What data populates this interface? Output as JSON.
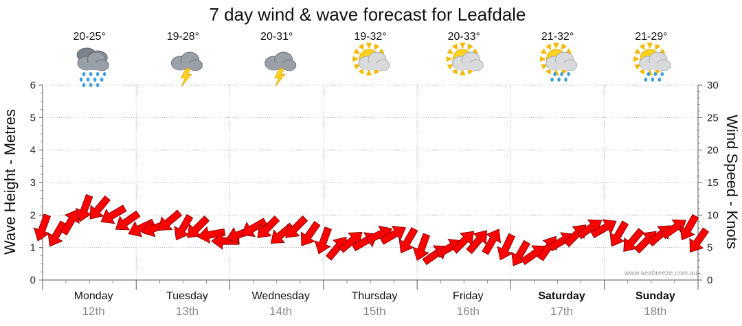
{
  "chart_data": {
    "type": "line",
    "title": "7 day wind & wave forecast for Leafdale",
    "ylabel_left": "Wave Height - Metres",
    "ylabel_right": "Wind Speed - Knots",
    "ylim_left": [
      0,
      6
    ],
    "ylim_right": [
      0,
      30
    ],
    "yticks_left": [
      "0",
      "1",
      "2",
      "3",
      "4",
      "5",
      "6"
    ],
    "yticks_right": [
      "0",
      "5",
      "10",
      "15",
      "20",
      "25",
      "30"
    ],
    "grid": true,
    "credit": "www.seabreeze.com.au",
    "days": [
      {
        "name": "Monday",
        "date": "12th",
        "temp": "20-25°",
        "icon": "rain-cloud-icon",
        "bold": false
      },
      {
        "name": "Tuesday",
        "date": "13th",
        "temp": "19-28°",
        "icon": "thunderstorm-icon",
        "bold": false
      },
      {
        "name": "Wednesday",
        "date": "14th",
        "temp": "20-31°",
        "icon": "thunderstorm-icon",
        "bold": false
      },
      {
        "name": "Thursday",
        "date": "15th",
        "temp": "19-32°",
        "icon": "partly-cloudy-icon",
        "bold": false
      },
      {
        "name": "Friday",
        "date": "16th",
        "temp": "20-33°",
        "icon": "partly-cloudy-icon",
        "bold": false
      },
      {
        "name": "Saturday",
        "date": "17th",
        "temp": "21-32°",
        "icon": "sun-shower-icon",
        "bold": true
      },
      {
        "name": "Sunday",
        "date": "18th",
        "temp": "21-29°",
        "icon": "sun-shower-icon",
        "bold": true
      }
    ],
    "series": [
      {
        "name": "Wind Speed (Knots)",
        "color": "#ff0000",
        "x_days": [
          0,
          0.15,
          0.3,
          0.45,
          0.6,
          0.75,
          0.9,
          1.05,
          1.2,
          1.35,
          1.5,
          1.65,
          1.8,
          1.95,
          2.1,
          2.25,
          2.4,
          2.55,
          2.7,
          2.85,
          3.0,
          3.15,
          3.3,
          3.45,
          3.6,
          3.75,
          3.9,
          4.05,
          4.2,
          4.35,
          4.5,
          4.65,
          4.8,
          4.95,
          5.1,
          5.25,
          5.4,
          5.55,
          5.7,
          5.85,
          6.0,
          6.15,
          6.3,
          6.45,
          6.6,
          6.75,
          6.9,
          7.0
        ],
        "values": [
          8,
          7,
          9,
          11,
          11,
          10,
          9,
          8,
          8,
          9,
          8,
          8,
          7,
          6,
          7,
          8,
          8,
          7,
          8,
          7,
          6,
          5,
          6,
          6,
          7,
          7,
          6,
          5,
          4,
          5,
          6,
          6,
          6,
          5,
          4,
          4,
          5,
          6,
          7,
          8,
          8,
          7,
          6,
          6,
          7,
          8,
          8,
          6
        ]
      },
      {
        "name": "Wind Direction (degrees toward)",
        "directions": [
          200,
          210,
          30,
          200,
          220,
          240,
          235,
          245,
          250,
          230,
          210,
          225,
          260,
          270,
          250,
          240,
          225,
          230,
          225,
          215,
          200,
          40,
          50,
          60,
          65,
          60,
          210,
          200,
          55,
          60,
          45,
          40,
          30,
          205,
          210,
          55,
          35,
          60,
          45,
          55,
          60,
          210,
          220,
          45,
          50,
          55,
          210,
          215
        ]
      }
    ]
  }
}
